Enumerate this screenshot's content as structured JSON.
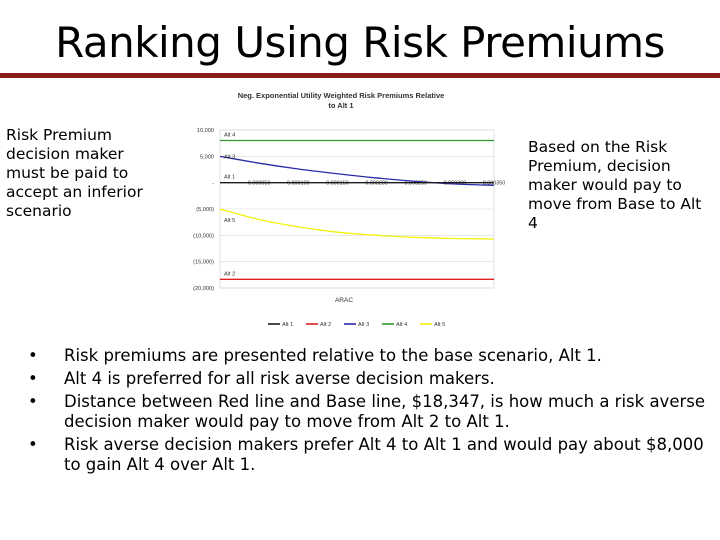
{
  "slide": {
    "title": "Ranking Using Risk Premiums",
    "left_note": "Risk Premium decision maker must be paid to accept an inferior scenario",
    "right_note": "Based on the Risk Premium, decision maker would pay to move from Base to Alt 4",
    "bullets": [
      "Risk premiums are presented relative to the base scenario, Alt 1.",
      "Alt 4 is preferred for all risk averse decision makers.",
      "Distance between Red line and Base line, $18,347, is how much a risk averse decision maker would pay to move from Alt 2 to Alt 1.",
      "Risk averse decision makers prefer Alt 4 to Alt 1 and would pay about $8,000 to gain Alt 4 over Alt 1."
    ],
    "bullet_glyph": "•"
  },
  "chart_data": {
    "type": "line",
    "title": "Neg. Exponential Utility Weighted Risk Premiums Relative to Alt 1",
    "xlabel": "ARAC",
    "ylabel": "",
    "x": [
      0,
      5e-05,
      0.0001,
      0.00015,
      0.0002,
      0.00025,
      0.0003,
      0.00035
    ],
    "xlim": [
      0,
      0.00035
    ],
    "ylim": [
      -20000,
      10000
    ],
    "x_tick_labels": [
      "0.000000",
      "0.000050",
      "0.000100",
      "0.000150",
      "0.000200",
      "0.000250",
      "0.000300",
      "0.000350"
    ],
    "y_ticks": [
      10000,
      5000,
      0,
      -5000,
      -10000,
      -15000,
      -20000
    ],
    "y_tick_labels": [
      "10,000",
      "5,000",
      "-",
      "(5,000)",
      "(10,000)",
      "(15,000)",
      "(20,000)"
    ],
    "grid": true,
    "legend_position": "bottom",
    "series": [
      {
        "name": "Alt 1",
        "color": "#1a1a1a",
        "values": [
          0,
          0,
          0,
          0,
          0,
          0,
          0,
          0
        ]
      },
      {
        "name": "Alt 2",
        "color": "#e02020",
        "values": [
          -18347,
          -18347,
          -18347,
          -18347,
          -18347,
          -18347,
          -18347,
          -18347
        ]
      },
      {
        "name": "Alt 3",
        "color": "#2a2aa8",
        "values": [
          5000,
          3700,
          2600,
          1700,
          900,
          250,
          -250,
          -500
        ]
      },
      {
        "name": "Alt 4",
        "color": "#2e9a2e",
        "values": [
          8000,
          8000,
          8000,
          8000,
          8000,
          8000,
          8000,
          8000
        ]
      },
      {
        "name": "Alt 5",
        "color": "#f2f20a",
        "values": [
          -5000,
          -7000,
          -8400,
          -9400,
          -10000,
          -10400,
          -10600,
          -10700
        ]
      }
    ],
    "annotations": [
      "Alt 4",
      "Alt 3",
      "Alt 1",
      "Alt 5",
      "Alt 2"
    ]
  }
}
